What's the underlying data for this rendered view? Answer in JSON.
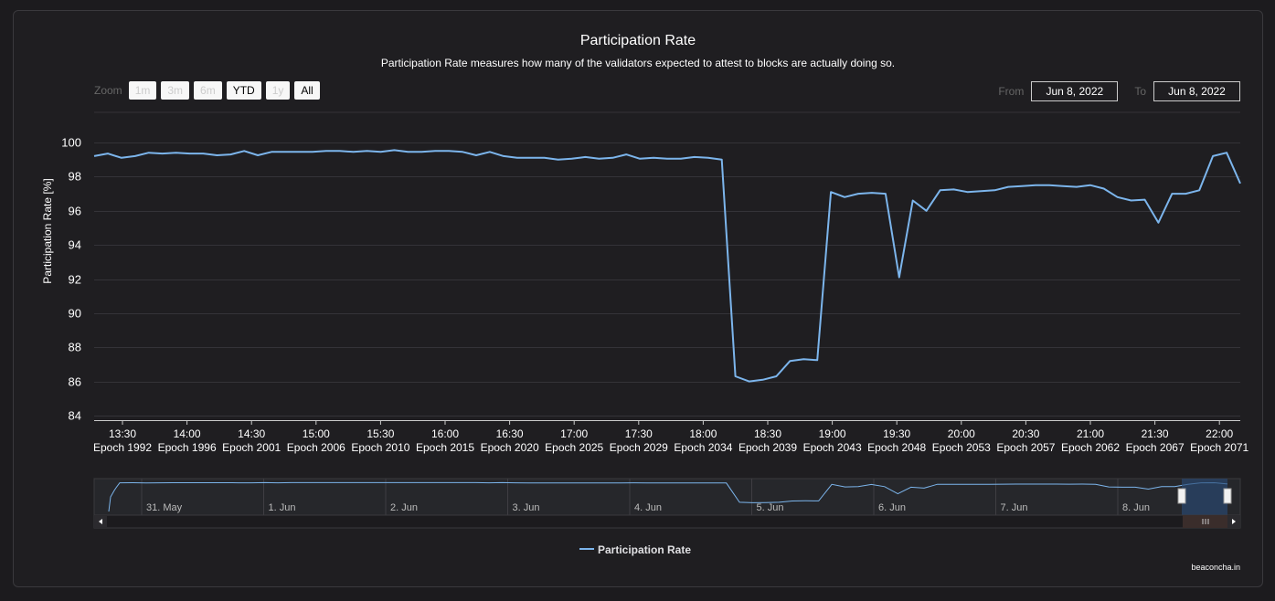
{
  "chart_data": {
    "type": "line",
    "title": "Participation Rate",
    "subtitle": "Participation Rate measures how many of the validators expected to attest to blocks are actually doing so.",
    "ylabel": "Participation Rate [%]",
    "ylim": [
      84,
      100
    ],
    "yticks": [
      84,
      86,
      88,
      90,
      92,
      94,
      96,
      98,
      100
    ],
    "grid": true,
    "legend_placement": "bottom-center",
    "x_tick_labels": [
      {
        "time": "13:30",
        "epoch": "Epoch 1992"
      },
      {
        "time": "14:00",
        "epoch": "Epoch 1996"
      },
      {
        "time": "14:30",
        "epoch": "Epoch 2001"
      },
      {
        "time": "15:00",
        "epoch": "Epoch 2006"
      },
      {
        "time": "15:30",
        "epoch": "Epoch 2010"
      },
      {
        "time": "16:00",
        "epoch": "Epoch 2015"
      },
      {
        "time": "16:30",
        "epoch": "Epoch 2020"
      },
      {
        "time": "17:00",
        "epoch": "Epoch 2025"
      },
      {
        "time": "17:30",
        "epoch": "Epoch 2029"
      },
      {
        "time": "18:00",
        "epoch": "Epoch 2034"
      },
      {
        "time": "18:30",
        "epoch": "Epoch 2039"
      },
      {
        "time": "19:00",
        "epoch": "Epoch 2043"
      },
      {
        "time": "19:30",
        "epoch": "Epoch 2048"
      },
      {
        "time": "20:00",
        "epoch": "Epoch 2053"
      },
      {
        "time": "20:30",
        "epoch": "Epoch 2057"
      },
      {
        "time": "21:00",
        "epoch": "Epoch 2062"
      },
      {
        "time": "21:30",
        "epoch": "Epoch 2067"
      },
      {
        "time": "22:00",
        "epoch": "Epoch 2071"
      }
    ],
    "series": [
      {
        "name": "Participation Rate",
        "color": "#7cb5ec",
        "x_epoch": [
          1988,
          1989,
          1990,
          1991,
          1992,
          1993,
          1994,
          1995,
          1996,
          1997,
          1998,
          1999,
          2000,
          2001,
          2002,
          2003,
          2004,
          2005,
          2006,
          2007,
          2008,
          2009,
          2010,
          2011,
          2012,
          2013,
          2014,
          2015,
          2016,
          2017,
          2018,
          2019,
          2020,
          2021,
          2022,
          2023,
          2024,
          2025,
          2026,
          2027,
          2028,
          2029,
          2030,
          2031,
          2032,
          2033,
          2034,
          2035,
          2036,
          2037,
          2038,
          2039,
          2040,
          2041,
          2042,
          2043,
          2044,
          2045,
          2046,
          2047,
          2048,
          2049,
          2050,
          2051,
          2052,
          2053,
          2054,
          2055,
          2056,
          2057,
          2058,
          2059,
          2060,
          2061,
          2062,
          2063,
          2064,
          2065,
          2066,
          2067,
          2068,
          2069,
          2070,
          2071,
          2072
        ],
        "values": [
          99.2,
          99.35,
          99.1,
          99.2,
          99.4,
          99.35,
          99.4,
          99.35,
          99.35,
          99.25,
          99.3,
          99.5,
          99.25,
          99.45,
          99.45,
          99.45,
          99.45,
          99.5,
          99.5,
          99.45,
          99.5,
          99.45,
          99.55,
          99.45,
          99.45,
          99.5,
          99.5,
          99.45,
          99.25,
          99.45,
          99.2,
          99.1,
          99.1,
          99.1,
          99.0,
          99.05,
          99.15,
          99.05,
          99.1,
          99.3,
          99.05,
          99.1,
          99.05,
          99.05,
          99.15,
          99.1,
          99.0,
          86.3,
          86.0,
          86.1,
          86.3,
          87.2,
          87.3,
          87.25,
          97.1,
          96.8,
          97.0,
          97.05,
          97.0,
          92.1,
          96.6,
          96.0,
          97.2,
          97.25,
          97.1,
          97.15,
          97.2,
          97.4,
          97.45,
          97.5,
          97.5,
          97.45,
          97.4,
          97.5,
          97.3,
          96.8,
          96.6,
          96.65,
          95.3,
          97.0,
          97.0,
          97.2,
          99.2,
          99.4,
          97.6
        ]
      }
    ]
  },
  "zoom": {
    "label": "Zoom",
    "buttons": [
      "1m",
      "3m",
      "6m",
      "YTD",
      "1y",
      "All"
    ],
    "enabled": [
      false,
      false,
      false,
      true,
      false,
      true
    ]
  },
  "range": {
    "from_label": "From",
    "from_value": "Jun 8, 2022",
    "to_label": "To",
    "to_value": "Jun 8, 2022"
  },
  "navigator": {
    "date_labels": [
      "31. May",
      "1. Jun",
      "2. Jun",
      "3. Jun",
      "4. Jun",
      "5. Jun",
      "6. Jun",
      "7. Jun",
      "8. Jun"
    ]
  },
  "brand": "beaconcha.in"
}
